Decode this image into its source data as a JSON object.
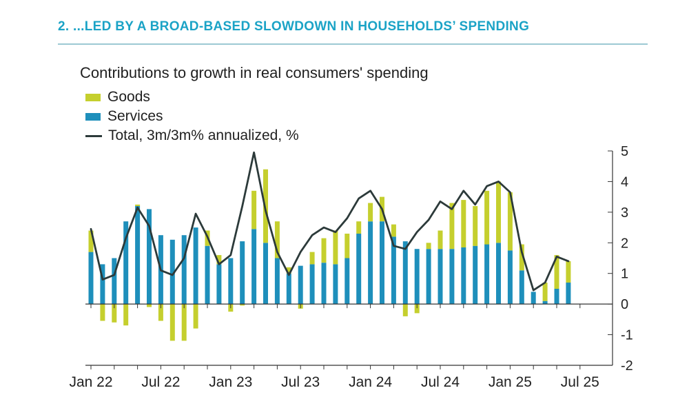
{
  "header": {
    "title": "2. ...LED BY A BROAD-BASED SLOWDOWN IN HOUSEHOLDS’ SPENDING"
  },
  "colors": {
    "title": "#1ba3c6",
    "goods": "#c5cf2e",
    "services": "#1e8fbb",
    "total": "#2c3a3a",
    "axis": "#333333"
  },
  "chart_data": {
    "type": "bar",
    "title": "Contributions to growth in real consumers' spending",
    "legend": [
      {
        "key": "goods",
        "label": "Goods",
        "icon": "bar-swatch"
      },
      {
        "key": "services",
        "label": "Services",
        "icon": "bar-swatch"
      },
      {
        "key": "total",
        "label": "Total, 3m/3m% annualized, %",
        "icon": "line-swatch"
      }
    ],
    "categories": [
      "Jan 22",
      "Feb 22",
      "Mar 22",
      "Apr 22",
      "May 22",
      "Jun 22",
      "Jul 22",
      "Aug 22",
      "Sep 22",
      "Oct 22",
      "Nov 22",
      "Dec 22",
      "Jan 23",
      "Feb 23",
      "Mar 23",
      "Apr 23",
      "May 23",
      "Jun 23",
      "Jul 23",
      "Aug 23",
      "Sep 23",
      "Oct 23",
      "Nov 23",
      "Dec 23",
      "Jan 24",
      "Feb 24",
      "Mar 24",
      "Apr 24",
      "May 24",
      "Jun 24",
      "Jul 24",
      "Aug 24",
      "Sep 24",
      "Oct 24",
      "Nov 24",
      "Dec 24",
      "Jan 25",
      "Feb 25",
      "Mar 25",
      "Apr 25",
      "May 25",
      "Jun 25",
      "Jul 25"
    ],
    "series": [
      {
        "name": "Services",
        "key": "services",
        "type": "bar",
        "values": [
          1.7,
          1.3,
          1.5,
          2.7,
          3.2,
          3.1,
          2.25,
          2.1,
          2.25,
          2.5,
          1.9,
          1.3,
          1.5,
          2.05,
          2.45,
          2.0,
          1.5,
          1.0,
          1.25,
          1.3,
          1.35,
          1.3,
          1.5,
          2.3,
          2.7,
          2.7,
          2.2,
          2.05,
          1.8,
          1.8,
          1.8,
          1.8,
          1.85,
          1.9,
          1.95,
          2.0,
          1.75,
          1.1,
          0.4,
          0.1,
          0.5,
          0.7,
          null
        ]
      },
      {
        "name": "Goods",
        "key": "goods",
        "type": "bar",
        "values": [
          0.7,
          -0.55,
          -0.6,
          -0.7,
          0.05,
          -0.1,
          -0.55,
          -1.2,
          -1.2,
          -0.8,
          0.5,
          0.3,
          -0.25,
          -0.05,
          1.25,
          2.4,
          1.2,
          0.2,
          -0.15,
          0.4,
          0.8,
          1.1,
          0.8,
          0.4,
          0.6,
          0.8,
          0.4,
          -0.4,
          -0.3,
          0.2,
          0.6,
          1.5,
          1.55,
          1.3,
          1.75,
          2.0,
          1.9,
          0.85,
          0.0,
          0.6,
          1.1,
          0.7,
          null
        ]
      },
      {
        "name": "Total, 3m/3m% annualized, %",
        "key": "total",
        "type": "line",
        "values": [
          2.45,
          0.8,
          0.95,
          2.15,
          3.15,
          2.55,
          1.1,
          0.95,
          1.5,
          2.95,
          2.2,
          1.3,
          1.6,
          3.2,
          4.95,
          3.05,
          1.7,
          0.95,
          1.7,
          2.25,
          2.5,
          2.35,
          2.8,
          3.45,
          3.7,
          3.1,
          1.9,
          1.8,
          2.35,
          2.75,
          3.35,
          3.1,
          3.7,
          3.25,
          3.85,
          4.0,
          3.65,
          1.7,
          0.45,
          0.7,
          1.55,
          1.4,
          null
        ]
      }
    ],
    "xticks": [
      "Jan 22",
      "Jul 22",
      "Jan 23",
      "Jul 23",
      "Jan 24",
      "Jul 24",
      "Jan 25",
      "Jul 25"
    ],
    "yticks": [
      5,
      4,
      3,
      2,
      1,
      0,
      -1,
      -2
    ],
    "ylim": [
      -2,
      5
    ],
    "y_axis_side": "right",
    "xlabel": "",
    "ylabel": "",
    "grid": false
  }
}
